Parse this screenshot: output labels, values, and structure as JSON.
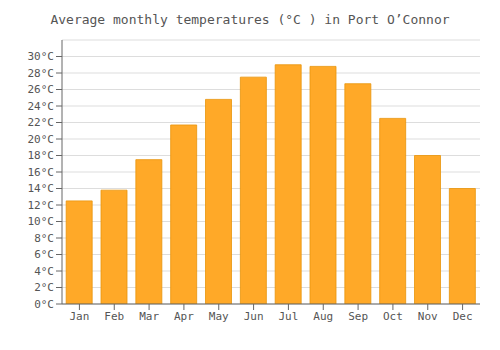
{
  "chart_data": {
    "type": "bar",
    "title": "Average monthly temperatures (°C ) in Port O’Connor",
    "categories": [
      "Jan",
      "Feb",
      "Mar",
      "Apr",
      "May",
      "Jun",
      "Jul",
      "Aug",
      "Sep",
      "Oct",
      "Nov",
      "Dec"
    ],
    "values": [
      12.5,
      13.8,
      17.5,
      21.7,
      24.8,
      27.5,
      29.0,
      28.8,
      26.7,
      22.5,
      18.0,
      14.0
    ],
    "color": "#FFA928",
    "ylim": [
      0,
      32
    ],
    "yticks": [
      {
        "value": 0,
        "label": "0°C"
      },
      {
        "value": 2,
        "label": "2°C"
      },
      {
        "value": 4,
        "label": "4°C"
      },
      {
        "value": 6,
        "label": "6°C"
      },
      {
        "value": 8,
        "label": "8°C"
      },
      {
        "value": 10,
        "label": "10°C"
      },
      {
        "value": 12,
        "label": "12°C"
      },
      {
        "value": 14,
        "label": "14°C"
      },
      {
        "value": 16,
        "label": "16°C"
      },
      {
        "value": 18,
        "label": "18°C"
      },
      {
        "value": 20,
        "label": "20°C"
      },
      {
        "value": 22,
        "label": "22°C"
      },
      {
        "value": 24,
        "label": "24°C"
      },
      {
        "value": 26,
        "label": "26°C"
      },
      {
        "value": 28,
        "label": "28°C"
      },
      {
        "value": 30,
        "label": "30°C"
      }
    ],
    "grid": true
  }
}
